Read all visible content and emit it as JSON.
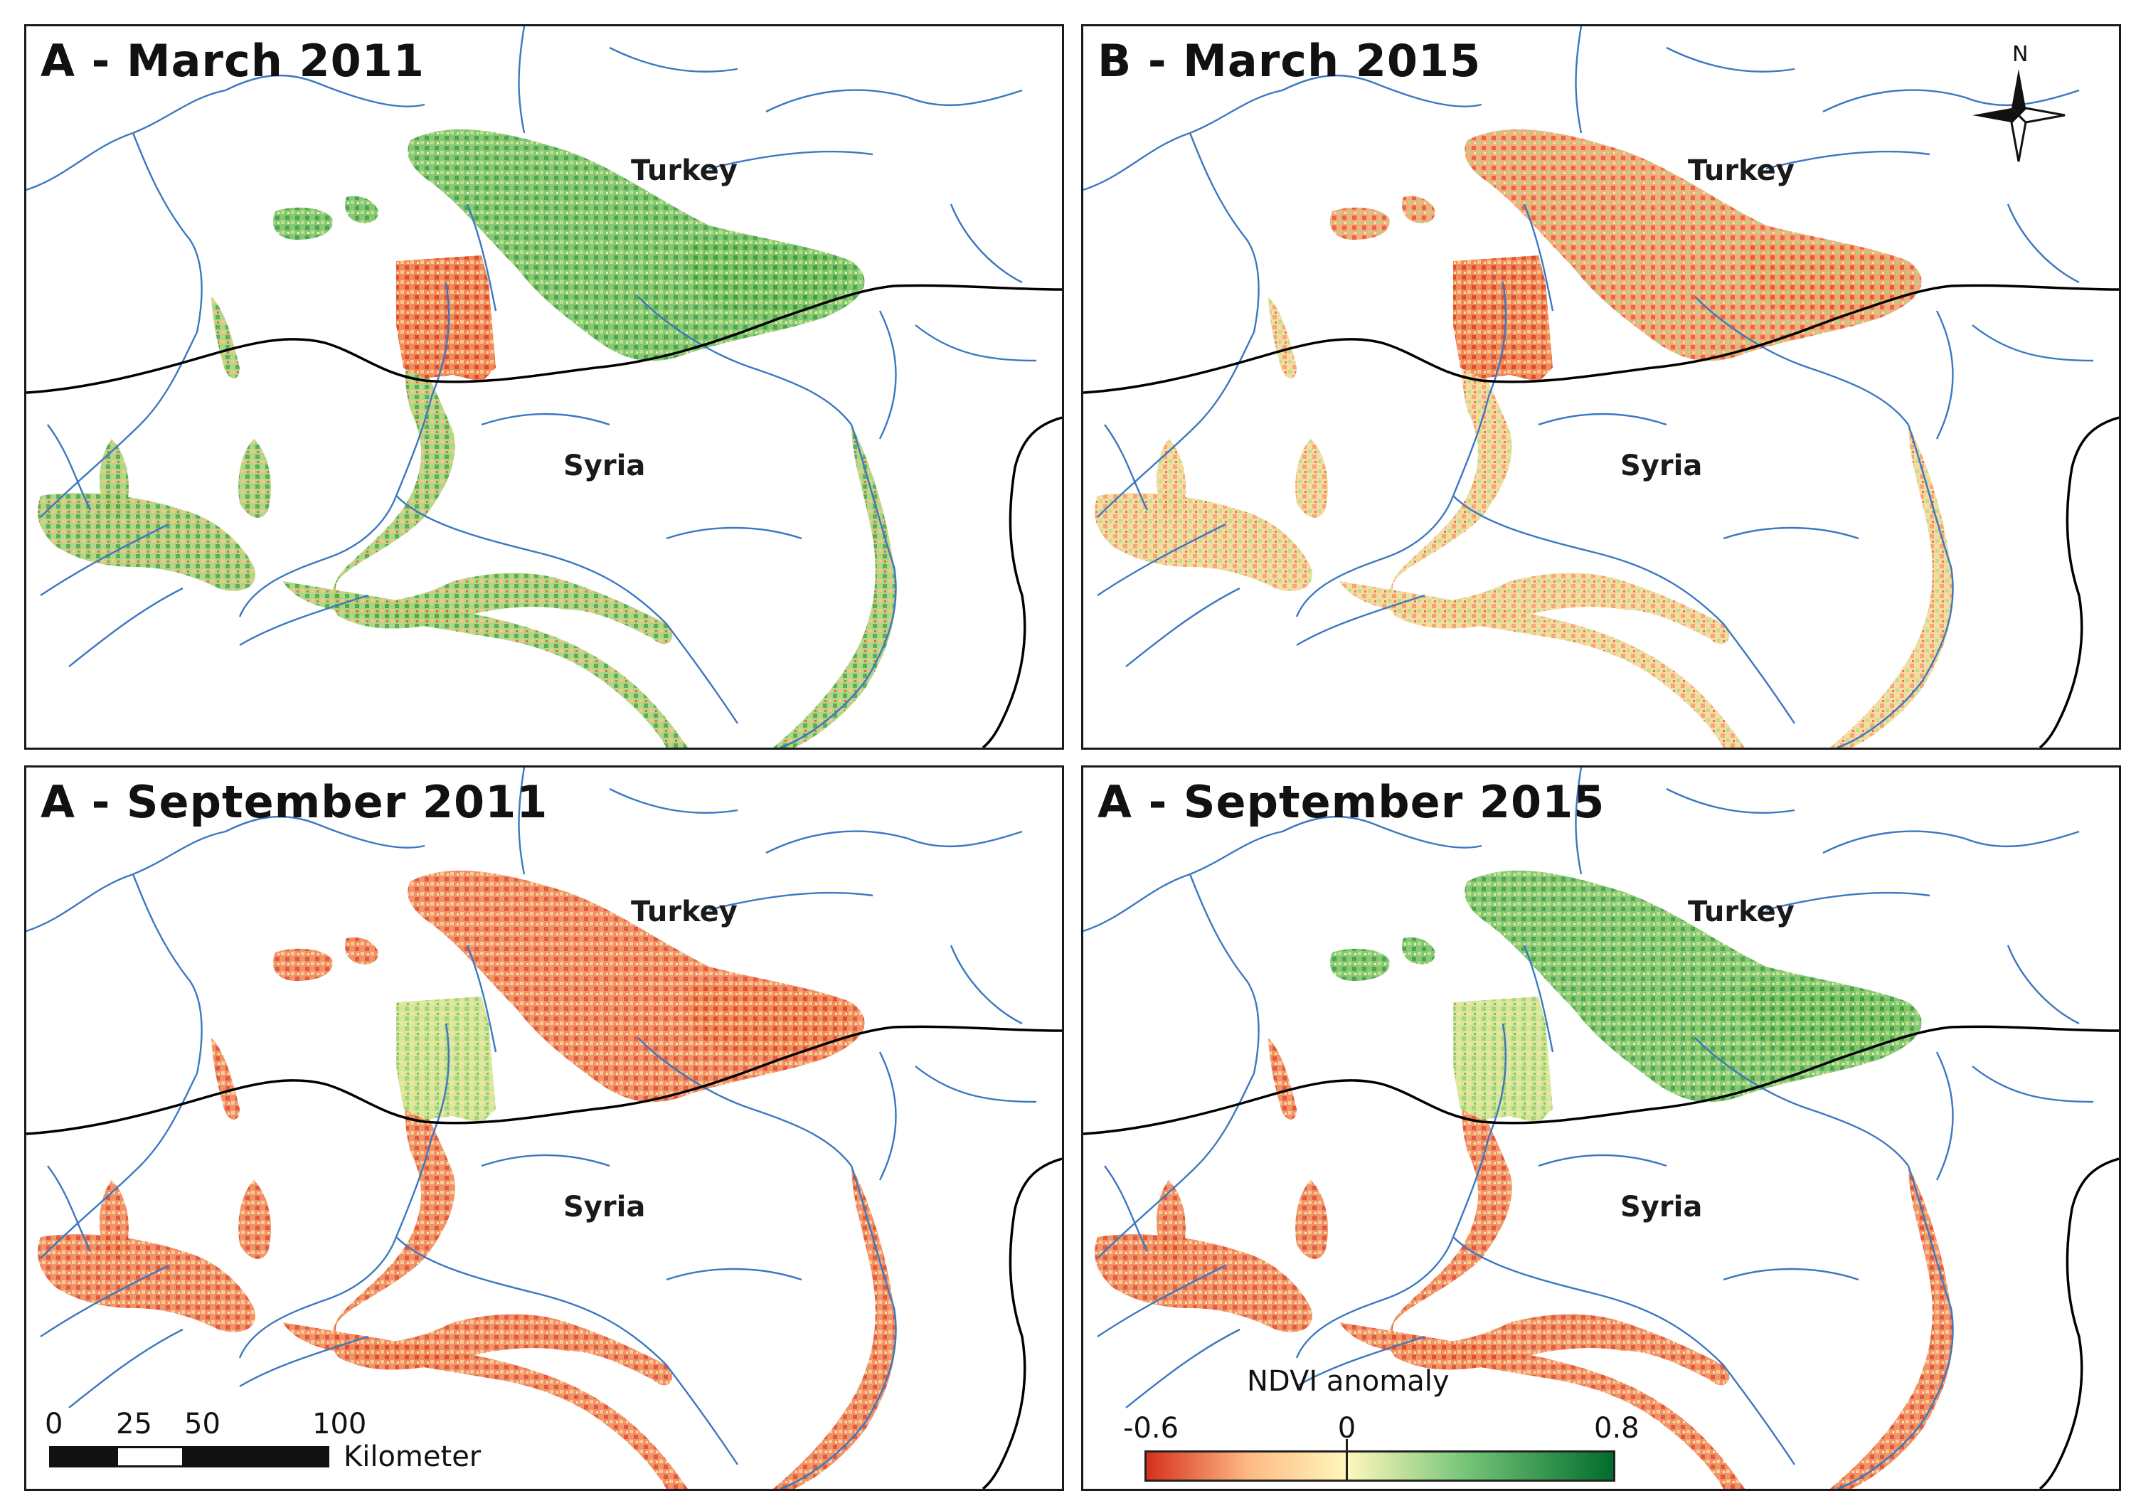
{
  "figure": {
    "panels": [
      {
        "title": "A - March 2011",
        "turkey": "Turkey",
        "syria": "Syria"
      },
      {
        "title": "B - March 2015",
        "turkey": "Turkey",
        "syria": "Syria"
      },
      {
        "title": "A - September 2011",
        "turkey": "Turkey",
        "syria": "Syria"
      },
      {
        "title": "A - September 2015",
        "turkey": "Turkey",
        "syria": "Syria"
      }
    ],
    "north_label": "N",
    "scale": {
      "ticks": [
        "0",
        "25",
        "50",
        "100"
      ],
      "unit": "Kilometer"
    },
    "legend": {
      "title": "NDVI anomaly",
      "min_label": "-0.6",
      "mid_label": "0",
      "max_label": "0.8",
      "min": -0.6,
      "mid": 0,
      "max": 0.8,
      "colors": {
        "negative": "#d7301f",
        "mid_low": "#fdbb84",
        "neutral": "#fff7bc",
        "mid_high": "#78c679",
        "positive": "#006d2c"
      }
    },
    "features": {
      "river_color": "#3a78c0",
      "border_color": "#000000"
    },
    "panel_patterns": [
      {
        "turkey_fields": "green",
        "syria_fields": "mixed-green",
        "block": "red"
      },
      {
        "turkey_fields": "mixed-red",
        "syria_fields": "mixed-yellow",
        "block": "red"
      },
      {
        "turkey_fields": "red",
        "syria_fields": "red",
        "block": "yellow-green"
      },
      {
        "turkey_fields": "green",
        "syria_fields": "red",
        "block": "yellow-green"
      }
    ]
  }
}
